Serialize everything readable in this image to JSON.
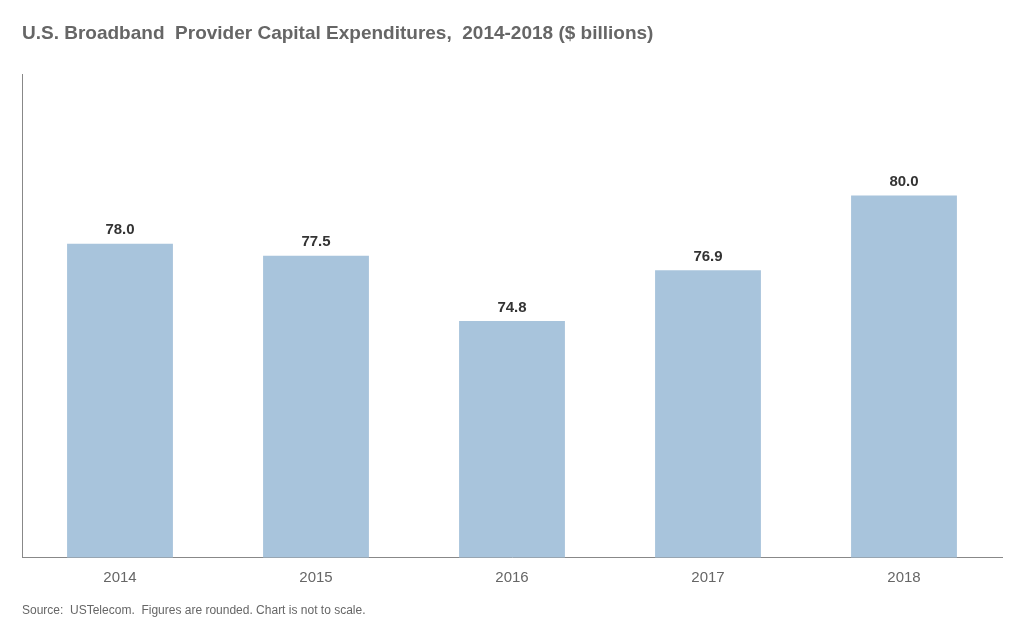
{
  "chart_data": {
    "type": "bar",
    "title": "U.S. Broadband  Provider Capital Expenditures,  2014-2018 ($ billions)",
    "categories": [
      "2014",
      "2015",
      "2016",
      "2017",
      "2018"
    ],
    "values": [
      78.0,
      77.5,
      74.8,
      76.9,
      80.0
    ],
    "value_labels": [
      "78.0",
      "77.5",
      "74.8",
      "76.9",
      "80.0"
    ],
    "color": "#a8c4dc",
    "ylim": [
      65,
      85
    ],
    "grid": false,
    "data_labels": true,
    "tick_labels": "x",
    "annotations": [
      "Source:  USTelecom.  Figures are rounded. Chart is not to scale."
    ]
  }
}
